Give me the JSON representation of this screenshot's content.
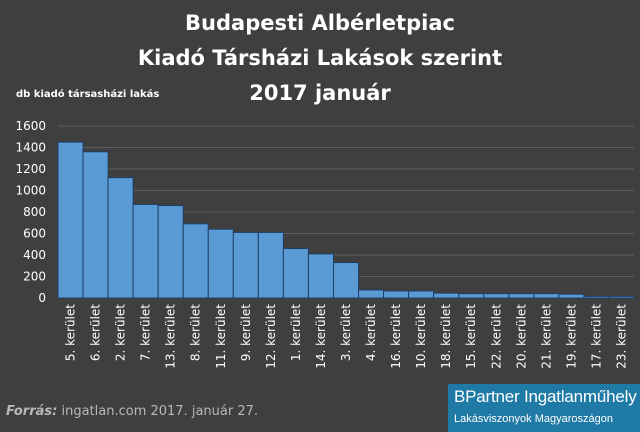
{
  "chart_data": {
    "type": "bar",
    "title_lines": [
      "Budapesti Albérletpiac",
      "Kiadó Társházi Lakások szerint",
      "2017 január"
    ],
    "ylabel": "db kiadó társasházi lakás",
    "ylim": [
      0,
      1600
    ],
    "yticks": [
      0,
      200,
      400,
      600,
      800,
      1000,
      1200,
      1400,
      1600
    ],
    "categories": [
      "5. kerület",
      "6. kerület",
      "2. kerület",
      "7. kerület",
      "13. kerület",
      "8. kerület",
      "11. kerület",
      "9. kerület",
      "12. kerület",
      "1. kerület",
      "14. kerület",
      "3. kerület",
      "4. kerület",
      "16. kerület",
      "10. kerület",
      "18. kerület",
      "15. kerület",
      "22. kerület",
      "20. kerület",
      "21. kerület",
      "19. kerület",
      "17. kerület",
      "23. kerület"
    ],
    "values": [
      1450,
      1360,
      1120,
      870,
      860,
      690,
      640,
      610,
      610,
      460,
      410,
      330,
      75,
      65,
      65,
      45,
      40,
      40,
      40,
      40,
      35,
      15,
      15
    ],
    "bar_color": "#5b9bd5",
    "grid": true
  },
  "source": {
    "label": "Forrás:",
    "text": "ingatlan.com 2017. január 27."
  },
  "logo": {
    "main": "BPartner Ingatlanműhely",
    "sub": "Lakásviszonyok Magyaroszágon"
  }
}
